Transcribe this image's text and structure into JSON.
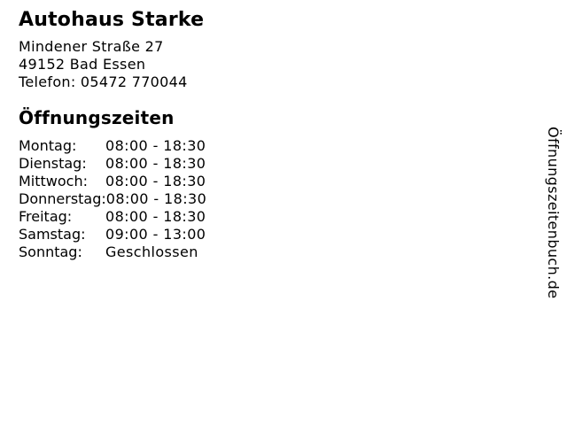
{
  "business": {
    "name": "Autohaus Starke",
    "address_street": "Mindener Straße 27",
    "address_city": "49152 Bad Essen",
    "phone_line": "Telefon: 05472 770044"
  },
  "hours": {
    "heading": "Öffnungszeiten",
    "rows": [
      {
        "day": "Montag:",
        "time": "08:00 - 18:30"
      },
      {
        "day": "Dienstag:",
        "time": "08:00 - 18:30"
      },
      {
        "day": "Mittwoch:",
        "time": "08:00 - 18:30"
      },
      {
        "day": "Donnerstag:",
        "time": "08:00 - 18:30"
      },
      {
        "day": "Freitag:",
        "time": "08:00 - 18:30"
      },
      {
        "day": "Samstag:",
        "time": "09:00 - 13:00"
      },
      {
        "day": "Sonntag:",
        "time": "Geschlossen"
      }
    ]
  },
  "watermark": {
    "text": "Öffnungszeitenbuch.de"
  },
  "colors": {
    "text": "#000000",
    "background": "#ffffff"
  }
}
